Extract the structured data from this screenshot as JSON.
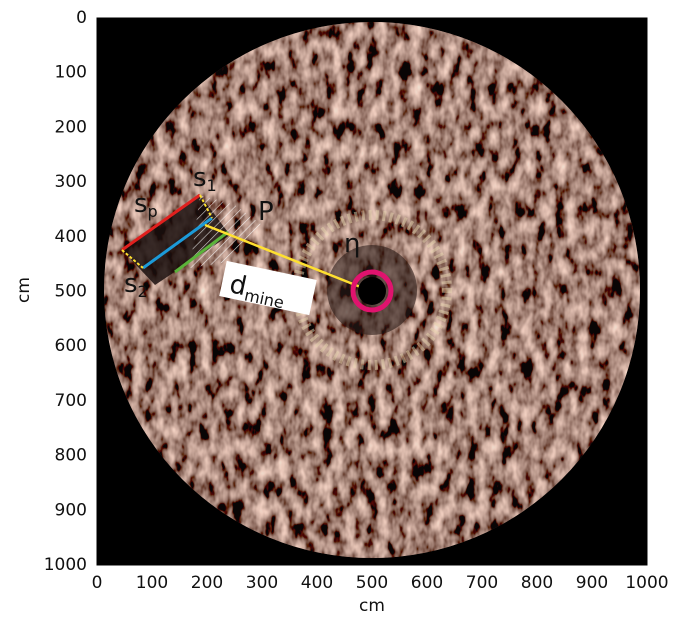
{
  "chart_data": {
    "type": "image",
    "xlabel": "cm",
    "ylabel": "cm",
    "xlim": [
      0,
      1000
    ],
    "ylim": [
      0,
      1000
    ],
    "y_inverted": true,
    "xticks": [
      0,
      100,
      200,
      300,
      400,
      500,
      600,
      700,
      800,
      900,
      1000
    ],
    "yticks": [
      0,
      100,
      200,
      300,
      400,
      500,
      600,
      700,
      800,
      900,
      1000
    ],
    "annotations": [
      {
        "text": "s",
        "subscript": "1"
      },
      {
        "text": "s",
        "subscript": "p"
      },
      {
        "text": "s",
        "subscript": "2"
      },
      {
        "text": "P"
      },
      {
        "text": "η"
      },
      {
        "text": "d",
        "subscript": "mine"
      }
    ]
  }
}
